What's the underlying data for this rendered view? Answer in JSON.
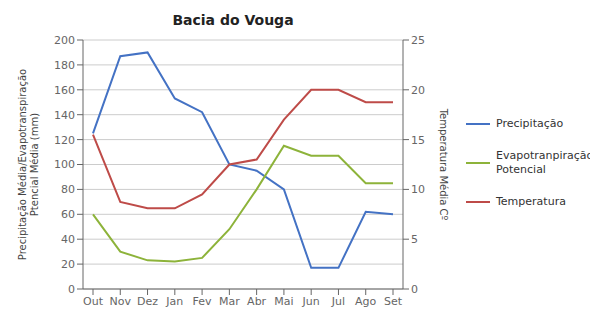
{
  "chart_data": {
    "type": "line",
    "title": "Bacia do Vouga",
    "categories": [
      "Out",
      "Nov",
      "Dez",
      "Jan",
      "Fev",
      "Mar",
      "Abr",
      "Mai",
      "Jun",
      "Jul",
      "Ago",
      "Set"
    ],
    "series": [
      {
        "name": "Precipitação",
        "color": "#4472C4",
        "values": [
          125,
          187,
          190,
          153,
          142,
          100,
          95,
          80,
          17,
          17,
          62,
          60
        ]
      },
      {
        "name": "Evapotranpiração\nPotencial",
        "color": "#8DB33A",
        "values": [
          60,
          30,
          23,
          22,
          25,
          48,
          80,
          115,
          107,
          107,
          85,
          85
        ]
      },
      {
        "name": "Temperatura",
        "color": "#BE4B48",
        "values": [
          15.5,
          8.75,
          8.1,
          8.1,
          9.5,
          12.5,
          13.0,
          17.0,
          20.0,
          20.0,
          18.75,
          18.75
        ],
        "axis": "y2"
      }
    ],
    "ylim": [
      0,
      200
    ],
    "yticks": [
      0,
      20,
      40,
      60,
      80,
      100,
      120,
      140,
      160,
      180,
      200
    ],
    "y2lim": [
      0,
      25
    ],
    "y2ticks": [
      0,
      5,
      10,
      15,
      20,
      25
    ],
    "ylabel": "Precipitação Média/Evapotranspiração\nPtencial Média (mm)",
    "y2label": "Temperatura Média Cº",
    "grid": true,
    "legend": "right"
  }
}
